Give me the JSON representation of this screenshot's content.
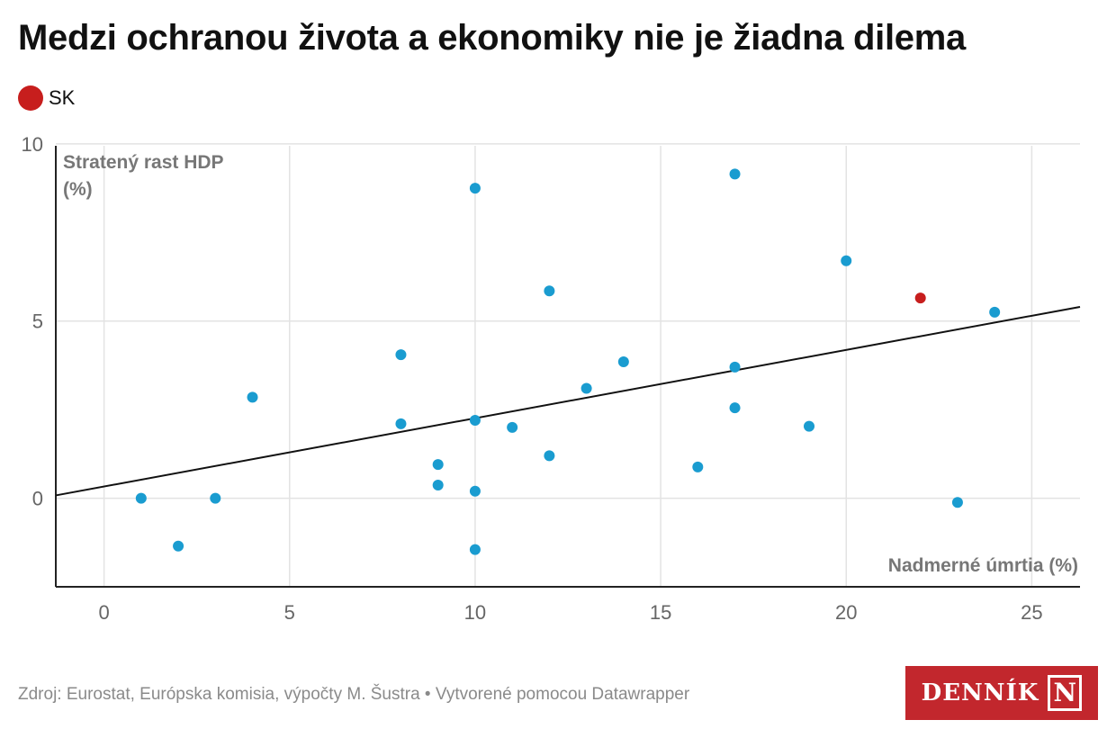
{
  "title": "Medzi ochranou života a ekonomiky nie je žiadna dilema",
  "legend": {
    "items": [
      {
        "label": "SK",
        "color": "#c71e1d"
      }
    ]
  },
  "footer": {
    "source": "Zdroj: Eurostat, Európska komisia, výpočty M. Šustra • Vytvorené pomocou Datawrapper"
  },
  "logo": {
    "text": "DENNÍK",
    "mark": "N",
    "color": "#c2272d"
  },
  "chart_data": {
    "type": "scatter",
    "xlabel": "Nadmerné úmrtia (%)",
    "ylabel_lines": [
      "Stratený rast HDP",
      "(%)"
    ],
    "xlim": [
      -1.3,
      26.3
    ],
    "ylim": [
      -2.5,
      10.2
    ],
    "xticks": [
      0,
      5,
      10,
      15,
      20,
      25
    ],
    "yticks": [
      0,
      5,
      10
    ],
    "grid": true,
    "point_color": "#1a9cd0",
    "highlight_color": "#c71e1d",
    "trendline": {
      "x": [
        -1.3,
        26.3
      ],
      "y": [
        0.08,
        5.4
      ],
      "color": "#111111"
    },
    "points": [
      {
        "x": 1,
        "y": 0.0
      },
      {
        "x": 2,
        "y": -1.35
      },
      {
        "x": 3,
        "y": 0.0
      },
      {
        "x": 4,
        "y": 2.85
      },
      {
        "x": 8,
        "y": 4.05
      },
      {
        "x": 8,
        "y": 2.1
      },
      {
        "x": 9,
        "y": 0.95
      },
      {
        "x": 9,
        "y": 0.37
      },
      {
        "x": 10,
        "y": 8.75
      },
      {
        "x": 10,
        "y": 2.2
      },
      {
        "x": 10,
        "y": 0.2
      },
      {
        "x": 10,
        "y": -1.45
      },
      {
        "x": 11,
        "y": 2.0
      },
      {
        "x": 12,
        "y": 5.85
      },
      {
        "x": 12,
        "y": 1.2
      },
      {
        "x": 13,
        "y": 3.1
      },
      {
        "x": 14,
        "y": 3.85
      },
      {
        "x": 16,
        "y": 0.88
      },
      {
        "x": 17,
        "y": 9.15
      },
      {
        "x": 17,
        "y": 3.7
      },
      {
        "x": 17,
        "y": 2.55
      },
      {
        "x": 19,
        "y": 2.03
      },
      {
        "x": 20,
        "y": 6.7
      },
      {
        "x": 22,
        "y": 5.65,
        "highlight": true,
        "label": "SK"
      },
      {
        "x": 23,
        "y": -0.12
      },
      {
        "x": 24,
        "y": 5.25
      }
    ]
  }
}
